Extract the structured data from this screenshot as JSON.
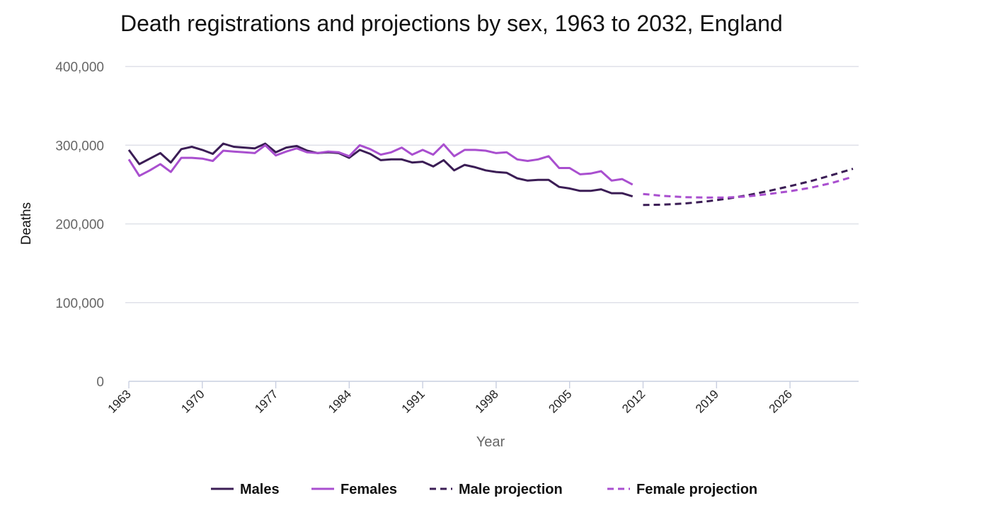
{
  "chart_data": {
    "type": "line",
    "title": "Death registrations and projections by sex, 1963 to 2032, England",
    "xlabel": "Year",
    "ylabel": "Deaths",
    "xlim": [
      1963,
      2032
    ],
    "ylim": [
      0,
      400000
    ],
    "yticks": [
      0,
      100000,
      200000,
      300000,
      400000
    ],
    "ytick_labels": [
      "0",
      "100,000",
      "200,000",
      "300,000",
      "400,000"
    ],
    "xticks": [
      1963,
      1970,
      1977,
      1984,
      1991,
      1998,
      2005,
      2012,
      2019,
      2026
    ],
    "xtick_labels": [
      "1963",
      "1970",
      "1977",
      "1984",
      "1991",
      "1998",
      "2005",
      "2012",
      "2019",
      "2026"
    ],
    "grid": true,
    "legend_position": "bottom",
    "series": [
      {
        "name": "Males",
        "color": "#3b1d55",
        "dash": "solid",
        "x": [
          1963,
          1964,
          1965,
          1966,
          1967,
          1968,
          1969,
          1970,
          1971,
          1972,
          1973,
          1974,
          1975,
          1976,
          1977,
          1978,
          1979,
          1980,
          1981,
          1982,
          1983,
          1984,
          1985,
          1986,
          1987,
          1988,
          1989,
          1990,
          1991,
          1992,
          1993,
          1994,
          1995,
          1996,
          1997,
          1998,
          1999,
          2000,
          2001,
          2002,
          2003,
          2004,
          2005,
          2006,
          2007,
          2008,
          2009,
          2010,
          2011
        ],
        "values": [
          294000,
          276000,
          283000,
          290000,
          278000,
          295000,
          298000,
          294000,
          289000,
          302000,
          298000,
          297000,
          296000,
          302000,
          291000,
          297000,
          299000,
          293000,
          290000,
          291000,
          290000,
          284000,
          294000,
          289000,
          281000,
          282000,
          282000,
          278000,
          279000,
          273000,
          281000,
          268000,
          275000,
          272000,
          268000,
          266000,
          265000,
          258000,
          255000,
          256000,
          256000,
          247000,
          245000,
          242000,
          242000,
          244000,
          239000,
          239000,
          235000
        ]
      },
      {
        "name": "Females",
        "color": "#a94fcf",
        "dash": "solid",
        "x": [
          1963,
          1964,
          1965,
          1966,
          1967,
          1968,
          1969,
          1970,
          1971,
          1972,
          1973,
          1974,
          1975,
          1976,
          1977,
          1978,
          1979,
          1980,
          1981,
          1982,
          1983,
          1984,
          1985,
          1986,
          1987,
          1988,
          1989,
          1990,
          1991,
          1992,
          1993,
          1994,
          1995,
          1996,
          1997,
          1998,
          1999,
          2000,
          2001,
          2002,
          2003,
          2004,
          2005,
          2006,
          2007,
          2008,
          2009,
          2010,
          2011
        ],
        "values": [
          282000,
          261000,
          268000,
          276000,
          266000,
          284000,
          284000,
          283000,
          280000,
          293000,
          292000,
          291000,
          290000,
          300000,
          287000,
          292000,
          296000,
          291000,
          290000,
          292000,
          291000,
          286000,
          300000,
          295000,
          288000,
          291000,
          297000,
          288000,
          294000,
          288000,
          301000,
          286000,
          294000,
          294000,
          293000,
          290000,
          291000,
          282000,
          280000,
          282000,
          286000,
          271000,
          271000,
          263000,
          264000,
          267000,
          255000,
          257000,
          250000
        ]
      },
      {
        "name": "Male projection",
        "color": "#3b1d55",
        "dash": "dashed",
        "x": [
          2012,
          2014,
          2016,
          2018,
          2020,
          2022,
          2024,
          2026,
          2028,
          2030,
          2032
        ],
        "values": [
          224000,
          224500,
          226000,
          228500,
          232000,
          236500,
          242000,
          248000,
          254500,
          262000,
          270000
        ]
      },
      {
        "name": "Female projection",
        "color": "#a94fcf",
        "dash": "dashed",
        "x": [
          2012,
          2014,
          2016,
          2018,
          2020,
          2022,
          2024,
          2026,
          2028,
          2030,
          2032
        ],
        "values": [
          238000,
          235500,
          234000,
          233500,
          233500,
          235000,
          238000,
          241500,
          246000,
          252000,
          260000
        ]
      }
    ]
  }
}
